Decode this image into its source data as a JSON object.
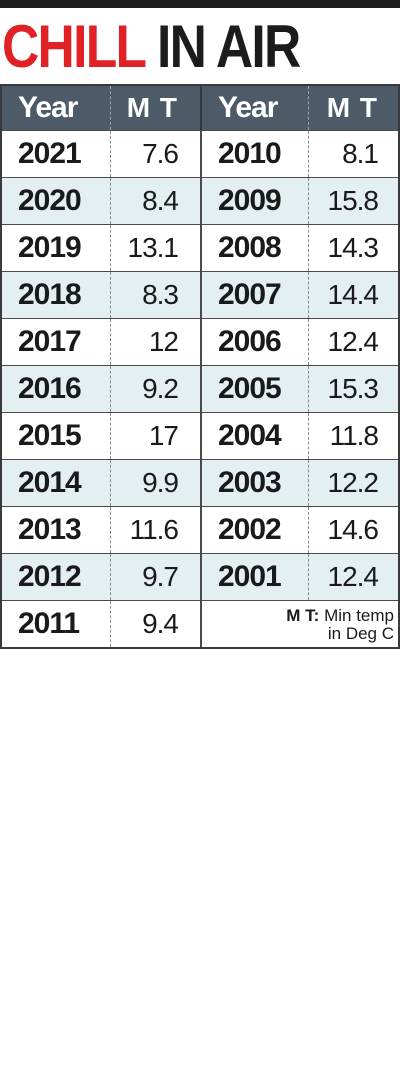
{
  "headline": {
    "part1": "CHILL",
    "part2": "IN AIR"
  },
  "table": {
    "headers": {
      "year": "Year",
      "mt": "M T"
    },
    "rows": [
      {
        "left_year": "2021",
        "left_mt": "7.6",
        "right_year": "2010",
        "right_mt": "8.1"
      },
      {
        "left_year": "2020",
        "left_mt": "8.4",
        "right_year": "2009",
        "right_mt": "15.8"
      },
      {
        "left_year": "2019",
        "left_mt": "13.1",
        "right_year": "2008",
        "right_mt": "14.3"
      },
      {
        "left_year": "2018",
        "left_mt": "8.3",
        "right_year": "2007",
        "right_mt": "14.4"
      },
      {
        "left_year": "2017",
        "left_mt": "12",
        "right_year": "2006",
        "right_mt": "12.4"
      },
      {
        "left_year": "2016",
        "left_mt": "9.2",
        "right_year": "2005",
        "right_mt": "15.3"
      },
      {
        "left_year": "2015",
        "left_mt": "17",
        "right_year": "2004",
        "right_mt": "11.8"
      },
      {
        "left_year": "2014",
        "left_mt": "9.9",
        "right_year": "2003",
        "right_mt": "12.2"
      },
      {
        "left_year": "2013",
        "left_mt": "11.6",
        "right_year": "2002",
        "right_mt": "14.6"
      },
      {
        "left_year": "2012",
        "left_mt": "9.7",
        "right_year": "2001",
        "right_mt": "12.4"
      }
    ],
    "last_row": {
      "year": "2011",
      "mt": "9.4"
    },
    "note": {
      "abbr": "M T:",
      "line1": "Min temp",
      "line2": "in Deg C"
    }
  },
  "colors": {
    "headline_red": "#e02126",
    "header_bg": "#4d5b69",
    "row_shade": "#e3eff0"
  }
}
